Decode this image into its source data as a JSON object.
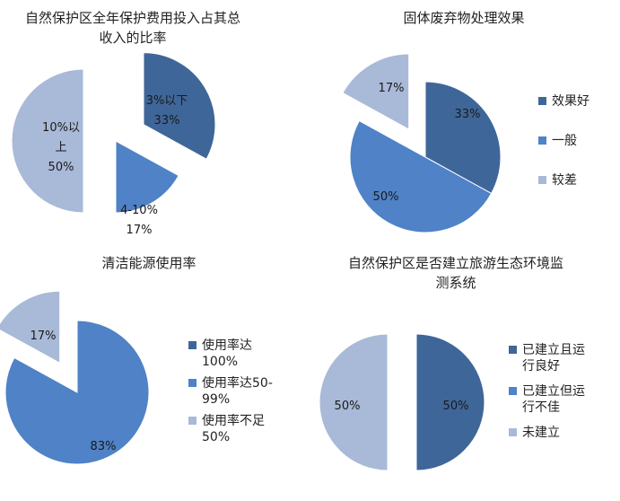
{
  "colors": {
    "dark": "#3f6699",
    "mid": "#4f82c6",
    "light": "#a9b9d8"
  },
  "chart_data": [
    {
      "type": "pie",
      "title": "自然保护区全年保护费用投入占其总\n收入的比率",
      "slices": [
        {
          "label": "3%以下",
          "value": 33,
          "display": "33%",
          "color": "dark",
          "exploded": true
        },
        {
          "label": "4-10%",
          "value": 17,
          "display": "17%",
          "color": "mid",
          "exploded": false
        },
        {
          "label": "10%以上",
          "value": 50,
          "display": "50%",
          "color": "light",
          "exploded": true
        }
      ],
      "legend": []
    },
    {
      "type": "pie",
      "title": "固体废弃物处理效果",
      "slices": [
        {
          "label": "效果好",
          "value": 33,
          "display": "33%",
          "color": "dark",
          "exploded": false
        },
        {
          "label": "一般",
          "value": 50,
          "display": "50%",
          "color": "mid",
          "exploded": false
        },
        {
          "label": "较差",
          "value": 17,
          "display": "17%",
          "color": "light",
          "exploded": true
        }
      ],
      "legend": [
        "效果好",
        "一般",
        "较差"
      ]
    },
    {
      "type": "pie",
      "title": "清洁能源使用率",
      "slices": [
        {
          "label": "使用率达100%",
          "value": 0,
          "display": "",
          "color": "dark",
          "exploded": false
        },
        {
          "label": "使用率达50-99%",
          "value": 83,
          "display": "83%",
          "color": "mid",
          "exploded": false
        },
        {
          "label": "使用率不足50%",
          "value": 17,
          "display": "17%",
          "color": "light",
          "exploded": true
        }
      ],
      "legend": [
        "使用率达\n100%",
        "使用率达50-\n99%",
        "使用率不足\n50%"
      ]
    },
    {
      "type": "pie",
      "title": "自然保护区是否建立旅游生态环境监\n测系统",
      "slices": [
        {
          "label": "已建立且运行良好",
          "value": 50,
          "display": "50%",
          "color": "dark",
          "exploded": true
        },
        {
          "label": "已建立但运行不佳",
          "value": 0,
          "display": "",
          "color": "mid",
          "exploded": false
        },
        {
          "label": "未建立",
          "value": 50,
          "display": "50%",
          "color": "light",
          "exploded": false
        }
      ],
      "legend": [
        "已建立且运\n行良好",
        "已建立但运\n行不佳",
        "未建立"
      ]
    }
  ]
}
